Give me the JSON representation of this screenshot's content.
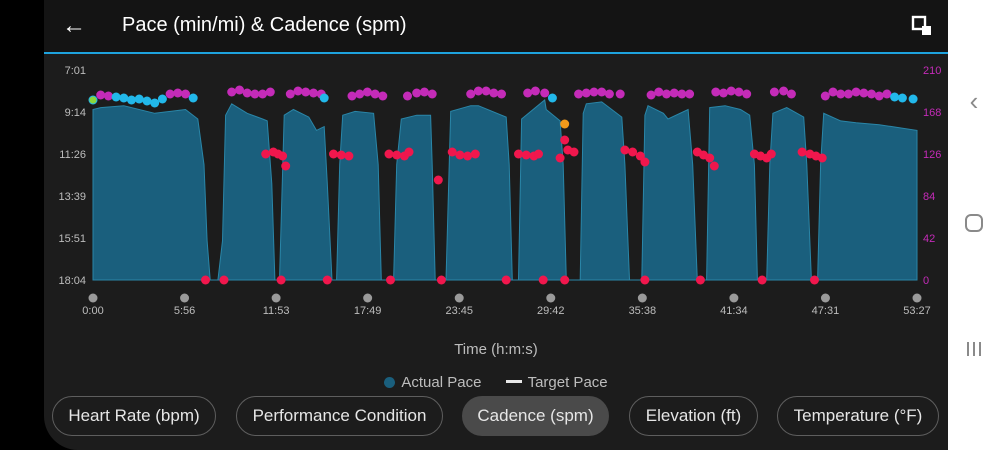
{
  "header": {
    "title": "Pace (min/mi) & Cadence (spm)"
  },
  "icons": {
    "back": "back-arrow-icon",
    "fullscreen": "fullscreen-icon",
    "nav_back": "chevron-left-icon",
    "nav_home": "home-circle-icon",
    "nav_recents": "recents-icon"
  },
  "colors": {
    "pace": "#1a5f7d",
    "pace_line": "#2a86a8",
    "cadence_magenta": "#c42bb8",
    "cadence_cyan": "#22b8ea",
    "cadence_red": "#f0174d",
    "cadence_orange": "#f29a1a",
    "cadence_green": "#8bd63a",
    "accent": "#1ea3de"
  },
  "chart_data": {
    "type": "area",
    "xlabel": "Time (h:m:s)",
    "x_ticks": [
      "0:00",
      "5:56",
      "11:53",
      "17:49",
      "23:45",
      "29:42",
      "35:38",
      "41:34",
      "47:31",
      "53:27"
    ],
    "x_range_min": [
      0,
      53.45
    ],
    "y_left": {
      "ticks": [
        "7:01",
        "9:14",
        "11:26",
        "13:39",
        "15:51",
        "18:04"
      ],
      "range_min_per_mi": [
        7.02,
        18.07
      ],
      "inverted": true
    },
    "y_right": {
      "ticks": [
        "210",
        "168",
        "126",
        "84",
        "42",
        "0"
      ],
      "range_spm": [
        0,
        210
      ]
    },
    "legend": {
      "placement": "bottom-center",
      "items": [
        "Actual Pace",
        "Target Pace"
      ]
    },
    "grid": "none",
    "series": [
      {
        "name": "Actual Pace",
        "unit": "min/mi",
        "points": [
          [
            0,
            9.1
          ],
          [
            0.5,
            9.0
          ],
          [
            2,
            8.9
          ],
          [
            4,
            9.3
          ],
          [
            6,
            9.1
          ],
          [
            6.8,
            9.6
          ],
          [
            7.2,
            12.0
          ],
          [
            7.4,
            16.0
          ],
          [
            7.6,
            18.07
          ],
          [
            8.1,
            18.07
          ],
          [
            8.4,
            16.0
          ],
          [
            8.6,
            9.4
          ],
          [
            9,
            8.8
          ],
          [
            10,
            9.3
          ],
          [
            11,
            9.6
          ],
          [
            11.3,
            9.7
          ],
          [
            11.6,
            13.0
          ],
          [
            11.8,
            18.07
          ],
          [
            12.1,
            18.07
          ],
          [
            12.4,
            9.4
          ],
          [
            13,
            9.1
          ],
          [
            14,
            9.5
          ],
          [
            14.5,
            10.2
          ],
          [
            15,
            10.0
          ],
          [
            15.2,
            13.0
          ],
          [
            15.5,
            18.07
          ],
          [
            15.8,
            18.07
          ],
          [
            16,
            12.0
          ],
          [
            16.2,
            9.4
          ],
          [
            17,
            9.2
          ],
          [
            18.2,
            9.3
          ],
          [
            18.5,
            12.0
          ],
          [
            18.7,
            18.07
          ],
          [
            19.5,
            18.07
          ],
          [
            19.7,
            12.0
          ],
          [
            20,
            9.6
          ],
          [
            21,
            9.4
          ],
          [
            21.9,
            9.4
          ],
          [
            22,
            12.0
          ],
          [
            22.2,
            18.07
          ],
          [
            22.9,
            18.07
          ],
          [
            23.2,
            9.2
          ],
          [
            24.5,
            8.9
          ],
          [
            25,
            8.9
          ],
          [
            26.8,
            9.5
          ],
          [
            27,
            12.0
          ],
          [
            27.2,
            18.07
          ],
          [
            27.6,
            18.07
          ],
          [
            27.8,
            9.6
          ],
          [
            29.3,
            8.6
          ],
          [
            29.4,
            9.1
          ],
          [
            30.3,
            9.7
          ],
          [
            30.5,
            12.0
          ],
          [
            30.7,
            18.07
          ],
          [
            31.6,
            18.07
          ],
          [
            31.8,
            9.3
          ],
          [
            32,
            8.8
          ],
          [
            33,
            8.7
          ],
          [
            34.3,
            9.5
          ],
          [
            34.5,
            12.0
          ],
          [
            34.8,
            18.07
          ],
          [
            35.6,
            18.07
          ],
          [
            35.8,
            9.4
          ],
          [
            36,
            8.9
          ],
          [
            37,
            9.3
          ],
          [
            37.3,
            9.6
          ],
          [
            38.6,
            9.1
          ],
          [
            38.9,
            12.0
          ],
          [
            39.2,
            18.07
          ],
          [
            39.8,
            18.07
          ],
          [
            40,
            9.0
          ],
          [
            41,
            8.9
          ],
          [
            42,
            9.1
          ],
          [
            42.6,
            9.4
          ],
          [
            42.9,
            12.0
          ],
          [
            43.1,
            18.07
          ],
          [
            43.7,
            18.07
          ],
          [
            43.9,
            12.0
          ],
          [
            44.1,
            9.3
          ],
          [
            45,
            9.0
          ],
          [
            46.1,
            9.5
          ],
          [
            46.3,
            12.0
          ],
          [
            46.6,
            18.07
          ],
          [
            47,
            18.07
          ],
          [
            47.2,
            12.0
          ],
          [
            47.4,
            9.3
          ],
          [
            48.5,
            9.7
          ],
          [
            49.5,
            9.8
          ],
          [
            51,
            9.9
          ],
          [
            53.45,
            10.2
          ]
        ]
      },
      {
        "name": "Cadence",
        "unit": "spm",
        "points": [
          [
            0,
            180
          ],
          [
            0.5,
            185
          ],
          [
            1,
            184
          ],
          [
            1.5,
            183
          ],
          [
            2,
            182
          ],
          [
            2.5,
            180
          ],
          [
            3,
            181
          ],
          [
            3.5,
            179
          ],
          [
            4,
            177
          ],
          [
            4.5,
            181
          ],
          [
            5,
            186
          ],
          [
            5.5,
            187
          ],
          [
            6,
            186
          ],
          [
            6.5,
            182
          ],
          [
            7.3,
            0
          ],
          [
            8.5,
            0
          ],
          [
            9,
            188
          ],
          [
            9.5,
            190
          ],
          [
            10,
            187
          ],
          [
            10.5,
            186
          ],
          [
            11,
            186
          ],
          [
            11.5,
            188
          ],
          [
            11.2,
            126
          ],
          [
            11.7,
            128
          ],
          [
            12,
            126
          ],
          [
            12.3,
            124
          ],
          [
            12.5,
            114
          ],
          [
            12.2,
            0
          ],
          [
            12.8,
            186
          ],
          [
            13.3,
            189
          ],
          [
            13.8,
            188
          ],
          [
            14.3,
            187
          ],
          [
            14.8,
            186
          ],
          [
            15,
            182
          ],
          [
            15.2,
            0
          ],
          [
            15.6,
            126
          ],
          [
            16.1,
            125
          ],
          [
            16.6,
            124
          ],
          [
            16.8,
            184
          ],
          [
            17.3,
            186
          ],
          [
            17.8,
            188
          ],
          [
            18.3,
            186
          ],
          [
            18.8,
            184
          ],
          [
            19.3,
            0
          ],
          [
            19.2,
            126
          ],
          [
            19.7,
            125
          ],
          [
            20.2,
            124
          ],
          [
            20.5,
            128
          ],
          [
            20.4,
            184
          ],
          [
            21,
            187
          ],
          [
            21.5,
            188
          ],
          [
            22,
            186
          ],
          [
            22.6,
            0
          ],
          [
            22.4,
            100
          ],
          [
            23.3,
            128
          ],
          [
            23.8,
            125
          ],
          [
            24.3,
            124
          ],
          [
            24.8,
            126
          ],
          [
            24.5,
            186
          ],
          [
            25,
            189
          ],
          [
            25.5,
            189
          ],
          [
            26,
            187
          ],
          [
            26.5,
            186
          ],
          [
            26.8,
            0
          ],
          [
            27.6,
            126
          ],
          [
            28.1,
            125
          ],
          [
            28.6,
            124
          ],
          [
            28.9,
            126
          ],
          [
            28.2,
            187
          ],
          [
            28.7,
            189
          ],
          [
            29.3,
            187
          ],
          [
            29.8,
            182
          ],
          [
            29.2,
            0
          ],
          [
            30.3,
            122
          ],
          [
            30.8,
            130
          ],
          [
            31.2,
            128
          ],
          [
            30.6,
            0
          ],
          [
            30.6,
            140
          ],
          [
            30.6,
            156
          ],
          [
            31.5,
            186
          ],
          [
            32,
            187
          ],
          [
            32.5,
            188
          ],
          [
            33,
            188
          ],
          [
            33.5,
            186
          ],
          [
            34.2,
            186
          ],
          [
            34.5,
            130
          ],
          [
            35,
            128
          ],
          [
            35.5,
            124
          ],
          [
            35.8,
            118
          ],
          [
            35.8,
            0
          ],
          [
            36.2,
            185
          ],
          [
            36.7,
            188
          ],
          [
            37.2,
            186
          ],
          [
            37.7,
            187
          ],
          [
            38.2,
            186
          ],
          [
            38.7,
            186
          ],
          [
            39.2,
            128
          ],
          [
            39.6,
            125
          ],
          [
            40,
            122
          ],
          [
            40.3,
            114
          ],
          [
            39.4,
            0
          ],
          [
            40.4,
            188
          ],
          [
            40.9,
            187
          ],
          [
            41.4,
            189
          ],
          [
            41.9,
            188
          ],
          [
            42.4,
            186
          ],
          [
            42.9,
            126
          ],
          [
            43.3,
            124
          ],
          [
            43.7,
            122
          ],
          [
            44,
            126
          ],
          [
            43.4,
            0
          ],
          [
            44.2,
            188
          ],
          [
            44.8,
            189
          ],
          [
            45.3,
            186
          ],
          [
            46,
            128
          ],
          [
            46.5,
            126
          ],
          [
            46.9,
            124
          ],
          [
            47.3,
            122
          ],
          [
            46.8,
            0
          ],
          [
            47.5,
            184
          ],
          [
            48,
            188
          ],
          [
            48.5,
            186
          ],
          [
            49,
            186
          ],
          [
            49.5,
            188
          ],
          [
            50,
            187
          ],
          [
            50.5,
            186
          ],
          [
            51,
            184
          ],
          [
            51.5,
            186
          ],
          [
            52,
            183
          ],
          [
            52.5,
            182
          ],
          [
            53.2,
            181
          ]
        ]
      }
    ]
  }
}
